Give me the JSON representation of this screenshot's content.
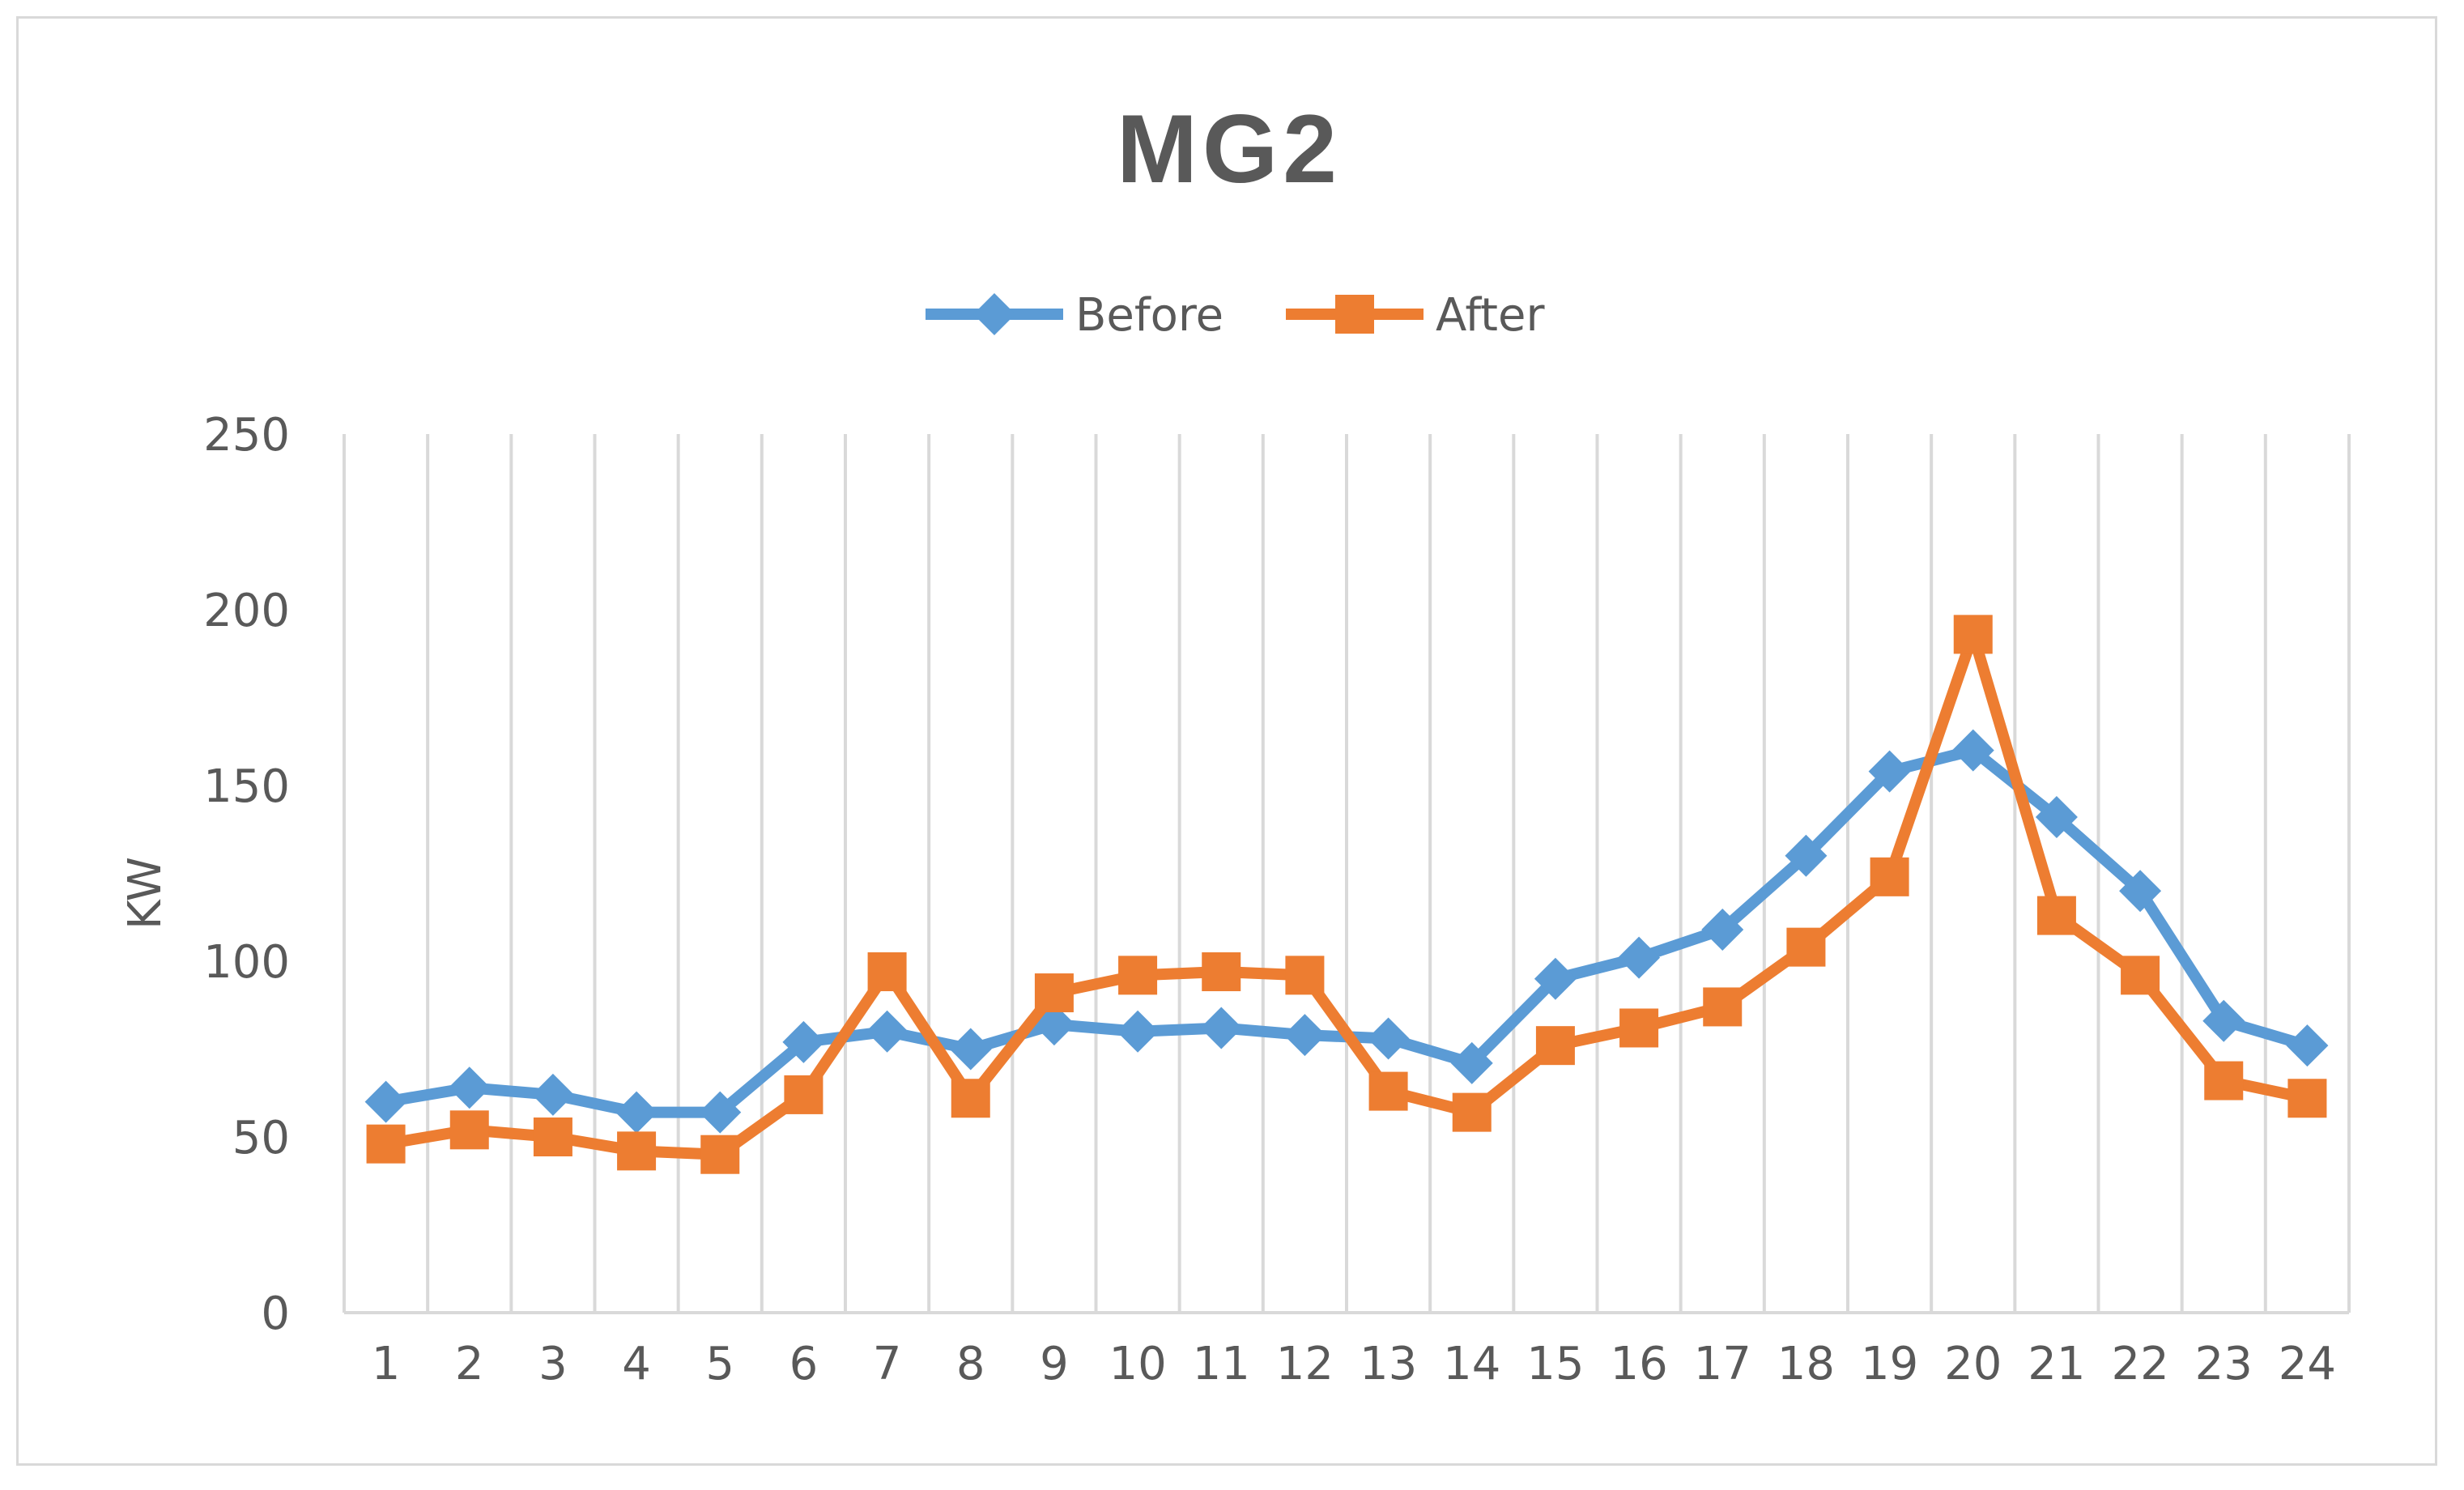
{
  "chart_data": {
    "type": "line",
    "title": "MG2",
    "xlabel": "",
    "ylabel": "KW",
    "categories": [
      "1",
      "2",
      "3",
      "4",
      "5",
      "6",
      "7",
      "8",
      "9",
      "10",
      "11",
      "12",
      "13",
      "14",
      "15",
      "16",
      "17",
      "18",
      "19",
      "20",
      "21",
      "22",
      "23",
      "24"
    ],
    "ylim": [
      0,
      250
    ],
    "yticks": [
      "0",
      "50",
      "100",
      "150",
      "200",
      "250"
    ],
    "grid": "vertical",
    "legend_position": "top",
    "series": [
      {
        "name": "Before",
        "marker": "diamond",
        "color": "#5B9BD5",
        "values": [
          60,
          64,
          62,
          57,
          57,
          77,
          80,
          75,
          82,
          80,
          81,
          79,
          78,
          71,
          95,
          101,
          109,
          130,
          154,
          160,
          141,
          120,
          83,
          76
        ]
      },
      {
        "name": "After",
        "marker": "square",
        "color": "#ED7D31",
        "values": [
          48,
          52,
          50,
          46,
          45,
          62,
          97,
          61,
          91,
          96,
          97,
          96,
          63,
          57,
          76,
          81,
          87,
          104,
          124,
          193,
          113,
          96,
          66,
          61
        ]
      }
    ]
  }
}
